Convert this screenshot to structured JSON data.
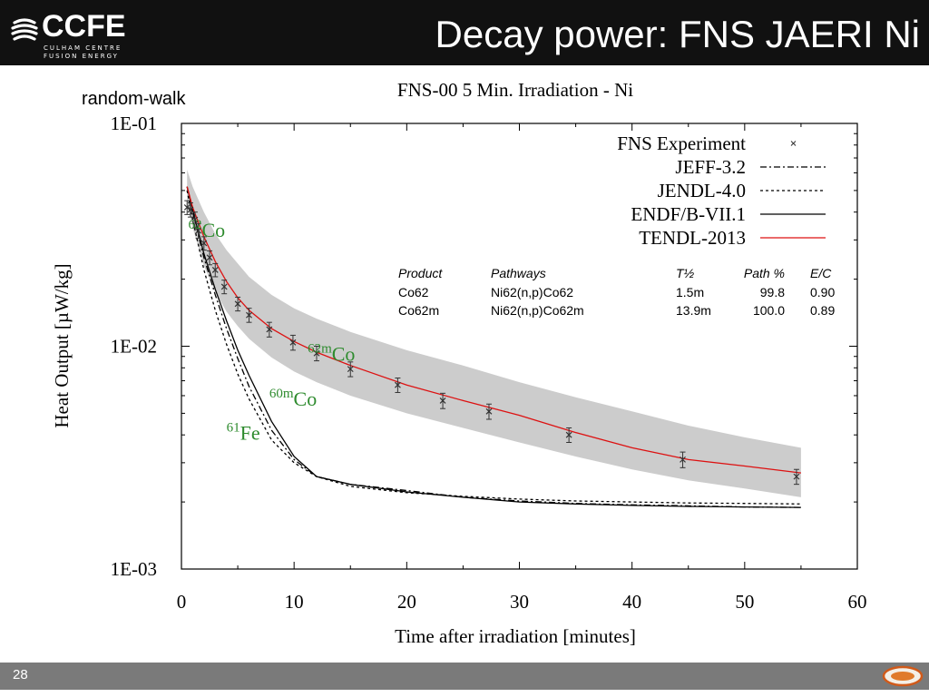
{
  "header": {
    "logo_text": "CCFE",
    "logo_sub1": "CULHAM CENTRE",
    "logo_sub2": "FUSION ENERGY",
    "title": "Decay power: FNS JAERI Ni"
  },
  "footer": {
    "slide_number": "28"
  },
  "method_label": "random-walk",
  "chart_data": {
    "type": "line",
    "title": "FNS-00 5 Min. Irradiation - Ni",
    "xlabel": "Time after irradiation [minutes]",
    "ylabel": "Heat Output [µW/kg]",
    "xlim": [
      0,
      60
    ],
    "ylim": [
      0.001,
      0.1
    ],
    "yscale": "log",
    "x_ticks": [
      0,
      10,
      20,
      30,
      40,
      50,
      60
    ],
    "x_tick_labels": [
      "0",
      "10",
      "20",
      "30",
      "40",
      "50",
      "60"
    ],
    "y_ticks": [
      0.1,
      0.01,
      0.001
    ],
    "y_tick_labels": [
      "1E-01",
      "1E-02",
      "1E-03"
    ],
    "grid": false,
    "legend_position": "top-right",
    "series": [
      {
        "name": "FNS Experiment",
        "style": "points",
        "color": "#333333",
        "points": [
          {
            "x": 0.5,
            "y": 0.042,
            "err": 0.003
          },
          {
            "x": 0.8,
            "y": 0.041,
            "err": 0.003
          },
          {
            "x": 1.2,
            "y": 0.037,
            "err": 0.003
          },
          {
            "x": 1.5,
            "y": 0.033,
            "err": 0.0025
          },
          {
            "x": 2.0,
            "y": 0.029,
            "err": 0.002
          },
          {
            "x": 2.5,
            "y": 0.025,
            "err": 0.0018
          },
          {
            "x": 3.0,
            "y": 0.022,
            "err": 0.0015
          },
          {
            "x": 3.8,
            "y": 0.0185,
            "err": 0.0013
          },
          {
            "x": 5.0,
            "y": 0.0155,
            "err": 0.0011
          },
          {
            "x": 6.0,
            "y": 0.0138,
            "err": 0.001
          },
          {
            "x": 7.8,
            "y": 0.0119,
            "err": 0.0009
          },
          {
            "x": 9.9,
            "y": 0.0104,
            "err": 0.0008
          },
          {
            "x": 12.0,
            "y": 0.0093,
            "err": 0.0007
          },
          {
            "x": 15.0,
            "y": 0.0079,
            "err": 0.0006
          },
          {
            "x": 19.2,
            "y": 0.0067,
            "err": 0.0005
          },
          {
            "x": 23.2,
            "y": 0.0057,
            "err": 0.00045
          },
          {
            "x": 27.3,
            "y": 0.0051,
            "err": 0.0004
          },
          {
            "x": 34.4,
            "y": 0.004,
            "err": 0.0003
          },
          {
            "x": 44.5,
            "y": 0.0031,
            "err": 0.00025
          },
          {
            "x": 54.6,
            "y": 0.0026,
            "err": 0.0002
          }
        ]
      },
      {
        "name": "JEFF-3.2",
        "style": "dashdot",
        "color": "#000000",
        "x": [
          0.5,
          1,
          2,
          3,
          4,
          5,
          6,
          8,
          10,
          12,
          15,
          20,
          25,
          30,
          35,
          40,
          45,
          50,
          55
        ],
        "y": [
          0.052,
          0.04,
          0.025,
          0.017,
          0.012,
          0.0088,
          0.0066,
          0.0042,
          0.0031,
          0.0026,
          0.0024,
          0.00225,
          0.0021,
          0.00202,
          0.00197,
          0.00194,
          0.00192,
          0.0019,
          0.00189
        ]
      },
      {
        "name": "JENDL-4.0",
        "style": "dotted",
        "color": "#000000",
        "x": [
          0.5,
          1,
          2,
          3,
          4,
          5,
          6,
          8,
          10,
          12,
          15,
          20,
          25,
          30,
          35,
          40,
          45,
          50,
          55
        ],
        "y": [
          0.05,
          0.037,
          0.022,
          0.0145,
          0.0102,
          0.0075,
          0.0058,
          0.0038,
          0.003,
          0.0026,
          0.00235,
          0.0022,
          0.00212,
          0.00206,
          0.00202,
          0.002,
          0.00198,
          0.00197,
          0.00196
        ]
      },
      {
        "name": "ENDF/B-VII.1",
        "style": "solid",
        "color": "#000000",
        "x": [
          0.5,
          1,
          2,
          3,
          4,
          5,
          6,
          8,
          10,
          12,
          15,
          20,
          25,
          30,
          35,
          40,
          45,
          50,
          55
        ],
        "y": [
          0.052,
          0.041,
          0.026,
          0.018,
          0.013,
          0.0096,
          0.0074,
          0.0046,
          0.0032,
          0.0026,
          0.0024,
          0.00222,
          0.0021,
          0.002,
          0.00196,
          0.00193,
          0.00191,
          0.0019,
          0.00189
        ]
      },
      {
        "name": "TENDL-2013",
        "style": "solid",
        "color": "#dd1111",
        "x": [
          0.5,
          1,
          1.5,
          2,
          3,
          4,
          5,
          6,
          8,
          10,
          12,
          15,
          20,
          25,
          30,
          35,
          40,
          45,
          50,
          55
        ],
        "y": [
          0.052,
          0.042,
          0.036,
          0.031,
          0.024,
          0.0195,
          0.0165,
          0.0145,
          0.012,
          0.0105,
          0.0094,
          0.0082,
          0.0067,
          0.0057,
          0.0049,
          0.0041,
          0.0035,
          0.0031,
          0.0029,
          0.0027
        ]
      }
    ],
    "uncertainty_band": {
      "color": "#cccccc",
      "x": [
        0.5,
        1,
        2,
        3,
        4,
        5,
        6,
        8,
        10,
        12,
        15,
        20,
        25,
        30,
        35,
        40,
        45,
        50,
        55
      ],
      "upper": [
        0.062,
        0.052,
        0.04,
        0.032,
        0.027,
        0.0235,
        0.0205,
        0.017,
        0.0148,
        0.0133,
        0.0116,
        0.0096,
        0.0082,
        0.0069,
        0.0059,
        0.0051,
        0.0044,
        0.0039,
        0.0035
      ],
      "lower": [
        0.043,
        0.034,
        0.023,
        0.0175,
        0.0143,
        0.0123,
        0.0108,
        0.0089,
        0.0077,
        0.0069,
        0.006,
        0.005,
        0.0043,
        0.0037,
        0.0032,
        0.0028,
        0.0025,
        0.0023,
        0.0021
      ]
    },
    "annotations": [
      {
        "sup": "62",
        "text": "Co",
        "color": "#2e8b2e",
        "x": 0.6,
        "y": 0.031
      },
      {
        "sup": "62m",
        "text": "Co",
        "color": "#2e8b2e",
        "x": 11.2,
        "y": 0.0086
      },
      {
        "sup": "60m",
        "text": "Co",
        "color": "#2e8b2e",
        "x": 7.8,
        "y": 0.0054
      },
      {
        "sup": "61",
        "text": "Fe",
        "color": "#2e8b2e",
        "x": 4.0,
        "y": 0.0038
      }
    ],
    "pathway_table": {
      "headers": [
        "Product",
        "Pathways",
        "T½",
        "Path %",
        "E/C"
      ],
      "rows": [
        [
          "Co62",
          "Ni62(n,p)Co62",
          "1.5m",
          "99.8",
          "0.90"
        ],
        [
          "Co62m",
          "Ni62(n,p)Co62m",
          "13.9m",
          "100.0",
          "0.89"
        ]
      ]
    }
  }
}
